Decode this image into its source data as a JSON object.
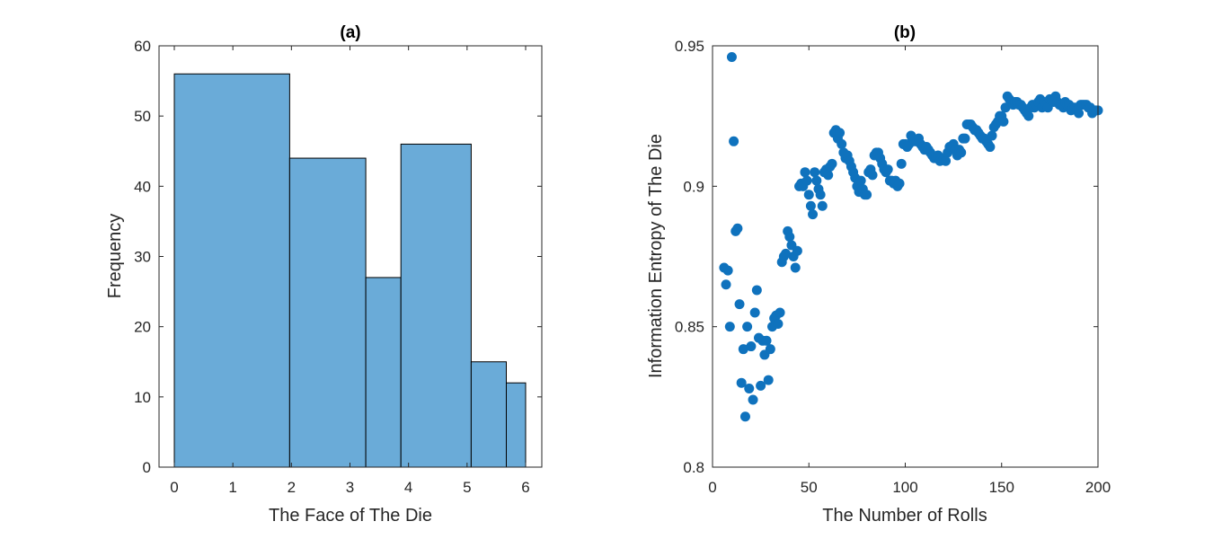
{
  "chart_data": [
    {
      "type": "bar",
      "title": "(a)",
      "xlabel": "The Face of The Die",
      "ylabel": "Frequency",
      "xlim": [
        0,
        6
      ],
      "ylim": [
        0,
        60
      ],
      "xticks": [
        0,
        1,
        2,
        3,
        4,
        5,
        6
      ],
      "yticks": [
        0,
        10,
        20,
        30,
        40,
        50,
        60
      ],
      "bins": [
        {
          "start": 0.0,
          "end": 1.97,
          "value": 56
        },
        {
          "start": 1.97,
          "end": 3.27,
          "value": 44
        },
        {
          "start": 3.27,
          "end": 3.87,
          "value": 27
        },
        {
          "start": 3.87,
          "end": 5.07,
          "value": 46
        },
        {
          "start": 5.07,
          "end": 5.67,
          "value": 15
        },
        {
          "start": 5.67,
          "end": 6.0,
          "value": 12
        }
      ],
      "bar_color": "#6aabd8",
      "edge_color": "#000000",
      "grid": false
    },
    {
      "type": "scatter",
      "title": "(b)",
      "xlabel": "The Number of Rolls",
      "ylabel": "Information Entropy of The Die",
      "xlim": [
        0,
        200
      ],
      "ylim": [
        0.8,
        0.95
      ],
      "xticks": [
        0,
        50,
        100,
        150,
        200
      ],
      "yticks": [
        0.8,
        0.85,
        0.9,
        0.95
      ],
      "marker_color": "#0f72bd",
      "grid": false,
      "points": [
        [
          6,
          0.871
        ],
        [
          7,
          0.865
        ],
        [
          8,
          0.87
        ],
        [
          9,
          0.85
        ],
        [
          10,
          0.946
        ],
        [
          11,
          0.916
        ],
        [
          12,
          0.884
        ],
        [
          13,
          0.885
        ],
        [
          14,
          0.858
        ],
        [
          15,
          0.83
        ],
        [
          16,
          0.842
        ],
        [
          17,
          0.818
        ],
        [
          18,
          0.85
        ],
        [
          19,
          0.828
        ],
        [
          20,
          0.843
        ],
        [
          21,
          0.824
        ],
        [
          22,
          0.855
        ],
        [
          23,
          0.863
        ],
        [
          24,
          0.846
        ],
        [
          25,
          0.829
        ],
        [
          26,
          0.845
        ],
        [
          27,
          0.84
        ],
        [
          28,
          0.845
        ],
        [
          29,
          0.831
        ],
        [
          30,
          0.842
        ],
        [
          31,
          0.85
        ],
        [
          32,
          0.853
        ],
        [
          33,
          0.854
        ],
        [
          34,
          0.851
        ],
        [
          35,
          0.855
        ],
        [
          36,
          0.873
        ],
        [
          37,
          0.875
        ],
        [
          38,
          0.876
        ],
        [
          39,
          0.884
        ],
        [
          40,
          0.882
        ],
        [
          41,
          0.879
        ],
        [
          42,
          0.875
        ],
        [
          43,
          0.871
        ],
        [
          44,
          0.877
        ],
        [
          45,
          0.9
        ],
        [
          46,
          0.901
        ],
        [
          47,
          0.9
        ],
        [
          48,
          0.905
        ],
        [
          49,
          0.902
        ],
        [
          50,
          0.897
        ],
        [
          51,
          0.893
        ],
        [
          52,
          0.89
        ],
        [
          53,
          0.905
        ],
        [
          54,
          0.902
        ],
        [
          55,
          0.899
        ],
        [
          56,
          0.897
        ],
        [
          57,
          0.893
        ],
        [
          58,
          0.905
        ],
        [
          59,
          0.906
        ],
        [
          60,
          0.904
        ],
        [
          61,
          0.907
        ],
        [
          62,
          0.908
        ],
        [
          63,
          0.919
        ],
        [
          64,
          0.92
        ],
        [
          65,
          0.917
        ],
        [
          66,
          0.919
        ],
        [
          67,
          0.915
        ],
        [
          68,
          0.912
        ],
        [
          69,
          0.91
        ],
        [
          70,
          0.911
        ],
        [
          71,
          0.909
        ],
        [
          72,
          0.907
        ],
        [
          73,
          0.905
        ],
        [
          74,
          0.903
        ],
        [
          75,
          0.9
        ],
        [
          76,
          0.898
        ],
        [
          77,
          0.902
        ],
        [
          78,
          0.899
        ],
        [
          79,
          0.897
        ],
        [
          80,
          0.897
        ],
        [
          81,
          0.905
        ],
        [
          82,
          0.906
        ],
        [
          83,
          0.904
        ],
        [
          84,
          0.911
        ],
        [
          85,
          0.912
        ],
        [
          86,
          0.912
        ],
        [
          87,
          0.91
        ],
        [
          88,
          0.908
        ],
        [
          89,
          0.906
        ],
        [
          90,
          0.905
        ],
        [
          91,
          0.906
        ],
        [
          92,
          0.902
        ],
        [
          93,
          0.902
        ],
        [
          94,
          0.901
        ],
        [
          95,
          0.902
        ],
        [
          96,
          0.9
        ],
        [
          97,
          0.901
        ],
        [
          98,
          0.908
        ],
        [
          99,
          0.915
        ],
        [
          100,
          0.915
        ],
        [
          101,
          0.914
        ],
        [
          102,
          0.915
        ],
        [
          103,
          0.918
        ],
        [
          104,
          0.917
        ],
        [
          105,
          0.916
        ],
        [
          106,
          0.916
        ],
        [
          107,
          0.917
        ],
        [
          108,
          0.915
        ],
        [
          109,
          0.914
        ],
        [
          110,
          0.913
        ],
        [
          111,
          0.914
        ],
        [
          112,
          0.913
        ],
        [
          113,
          0.912
        ],
        [
          114,
          0.911
        ],
        [
          115,
          0.91
        ],
        [
          116,
          0.91
        ],
        [
          117,
          0.911
        ],
        [
          118,
          0.909
        ],
        [
          119,
          0.91
        ],
        [
          120,
          0.91
        ],
        [
          121,
          0.909
        ],
        [
          122,
          0.912
        ],
        [
          123,
          0.914
        ],
        [
          124,
          0.914
        ],
        [
          125,
          0.915
        ],
        [
          126,
          0.913
        ],
        [
          127,
          0.911
        ],
        [
          128,
          0.913
        ],
        [
          129,
          0.912
        ],
        [
          130,
          0.917
        ],
        [
          131,
          0.917
        ],
        [
          132,
          0.922
        ],
        [
          133,
          0.922
        ],
        [
          134,
          0.922
        ],
        [
          135,
          0.921
        ],
        [
          136,
          0.92
        ],
        [
          137,
          0.92
        ],
        [
          138,
          0.919
        ],
        [
          139,
          0.918
        ],
        [
          140,
          0.917
        ],
        [
          141,
          0.917
        ],
        [
          142,
          0.916
        ],
        [
          143,
          0.915
        ],
        [
          144,
          0.914
        ],
        [
          145,
          0.918
        ],
        [
          146,
          0.921
        ],
        [
          147,
          0.922
        ],
        [
          148,
          0.923
        ],
        [
          149,
          0.925
        ],
        [
          150,
          0.925
        ],
        [
          151,
          0.923
        ],
        [
          152,
          0.928
        ],
        [
          153,
          0.932
        ],
        [
          154,
          0.931
        ],
        [
          155,
          0.93
        ],
        [
          156,
          0.929
        ],
        [
          157,
          0.93
        ],
        [
          158,
          0.93
        ],
        [
          159,
          0.929
        ],
        [
          160,
          0.929
        ],
        [
          161,
          0.928
        ],
        [
          162,
          0.927
        ],
        [
          163,
          0.926
        ],
        [
          164,
          0.925
        ],
        [
          165,
          0.928
        ],
        [
          166,
          0.929
        ],
        [
          167,
          0.928
        ],
        [
          168,
          0.929
        ],
        [
          169,
          0.93
        ],
        [
          170,
          0.931
        ],
        [
          171,
          0.928
        ],
        [
          172,
          0.93
        ],
        [
          173,
          0.929
        ],
        [
          174,
          0.928
        ],
        [
          175,
          0.931
        ],
        [
          176,
          0.931
        ],
        [
          177,
          0.93
        ],
        [
          178,
          0.932
        ],
        [
          179,
          0.93
        ],
        [
          180,
          0.929
        ],
        [
          181,
          0.929
        ],
        [
          182,
          0.928
        ],
        [
          183,
          0.93
        ],
        [
          184,
          0.929
        ],
        [
          185,
          0.929
        ],
        [
          186,
          0.927
        ],
        [
          187,
          0.928
        ],
        [
          188,
          0.928
        ],
        [
          189,
          0.927
        ],
        [
          190,
          0.926
        ],
        [
          191,
          0.929
        ],
        [
          192,
          0.929
        ],
        [
          193,
          0.929
        ],
        [
          194,
          0.929
        ],
        [
          195,
          0.928
        ],
        [
          196,
          0.928
        ],
        [
          197,
          0.926
        ],
        [
          198,
          0.927
        ],
        [
          199,
          0.927
        ],
        [
          200,
          0.927
        ]
      ]
    }
  ]
}
